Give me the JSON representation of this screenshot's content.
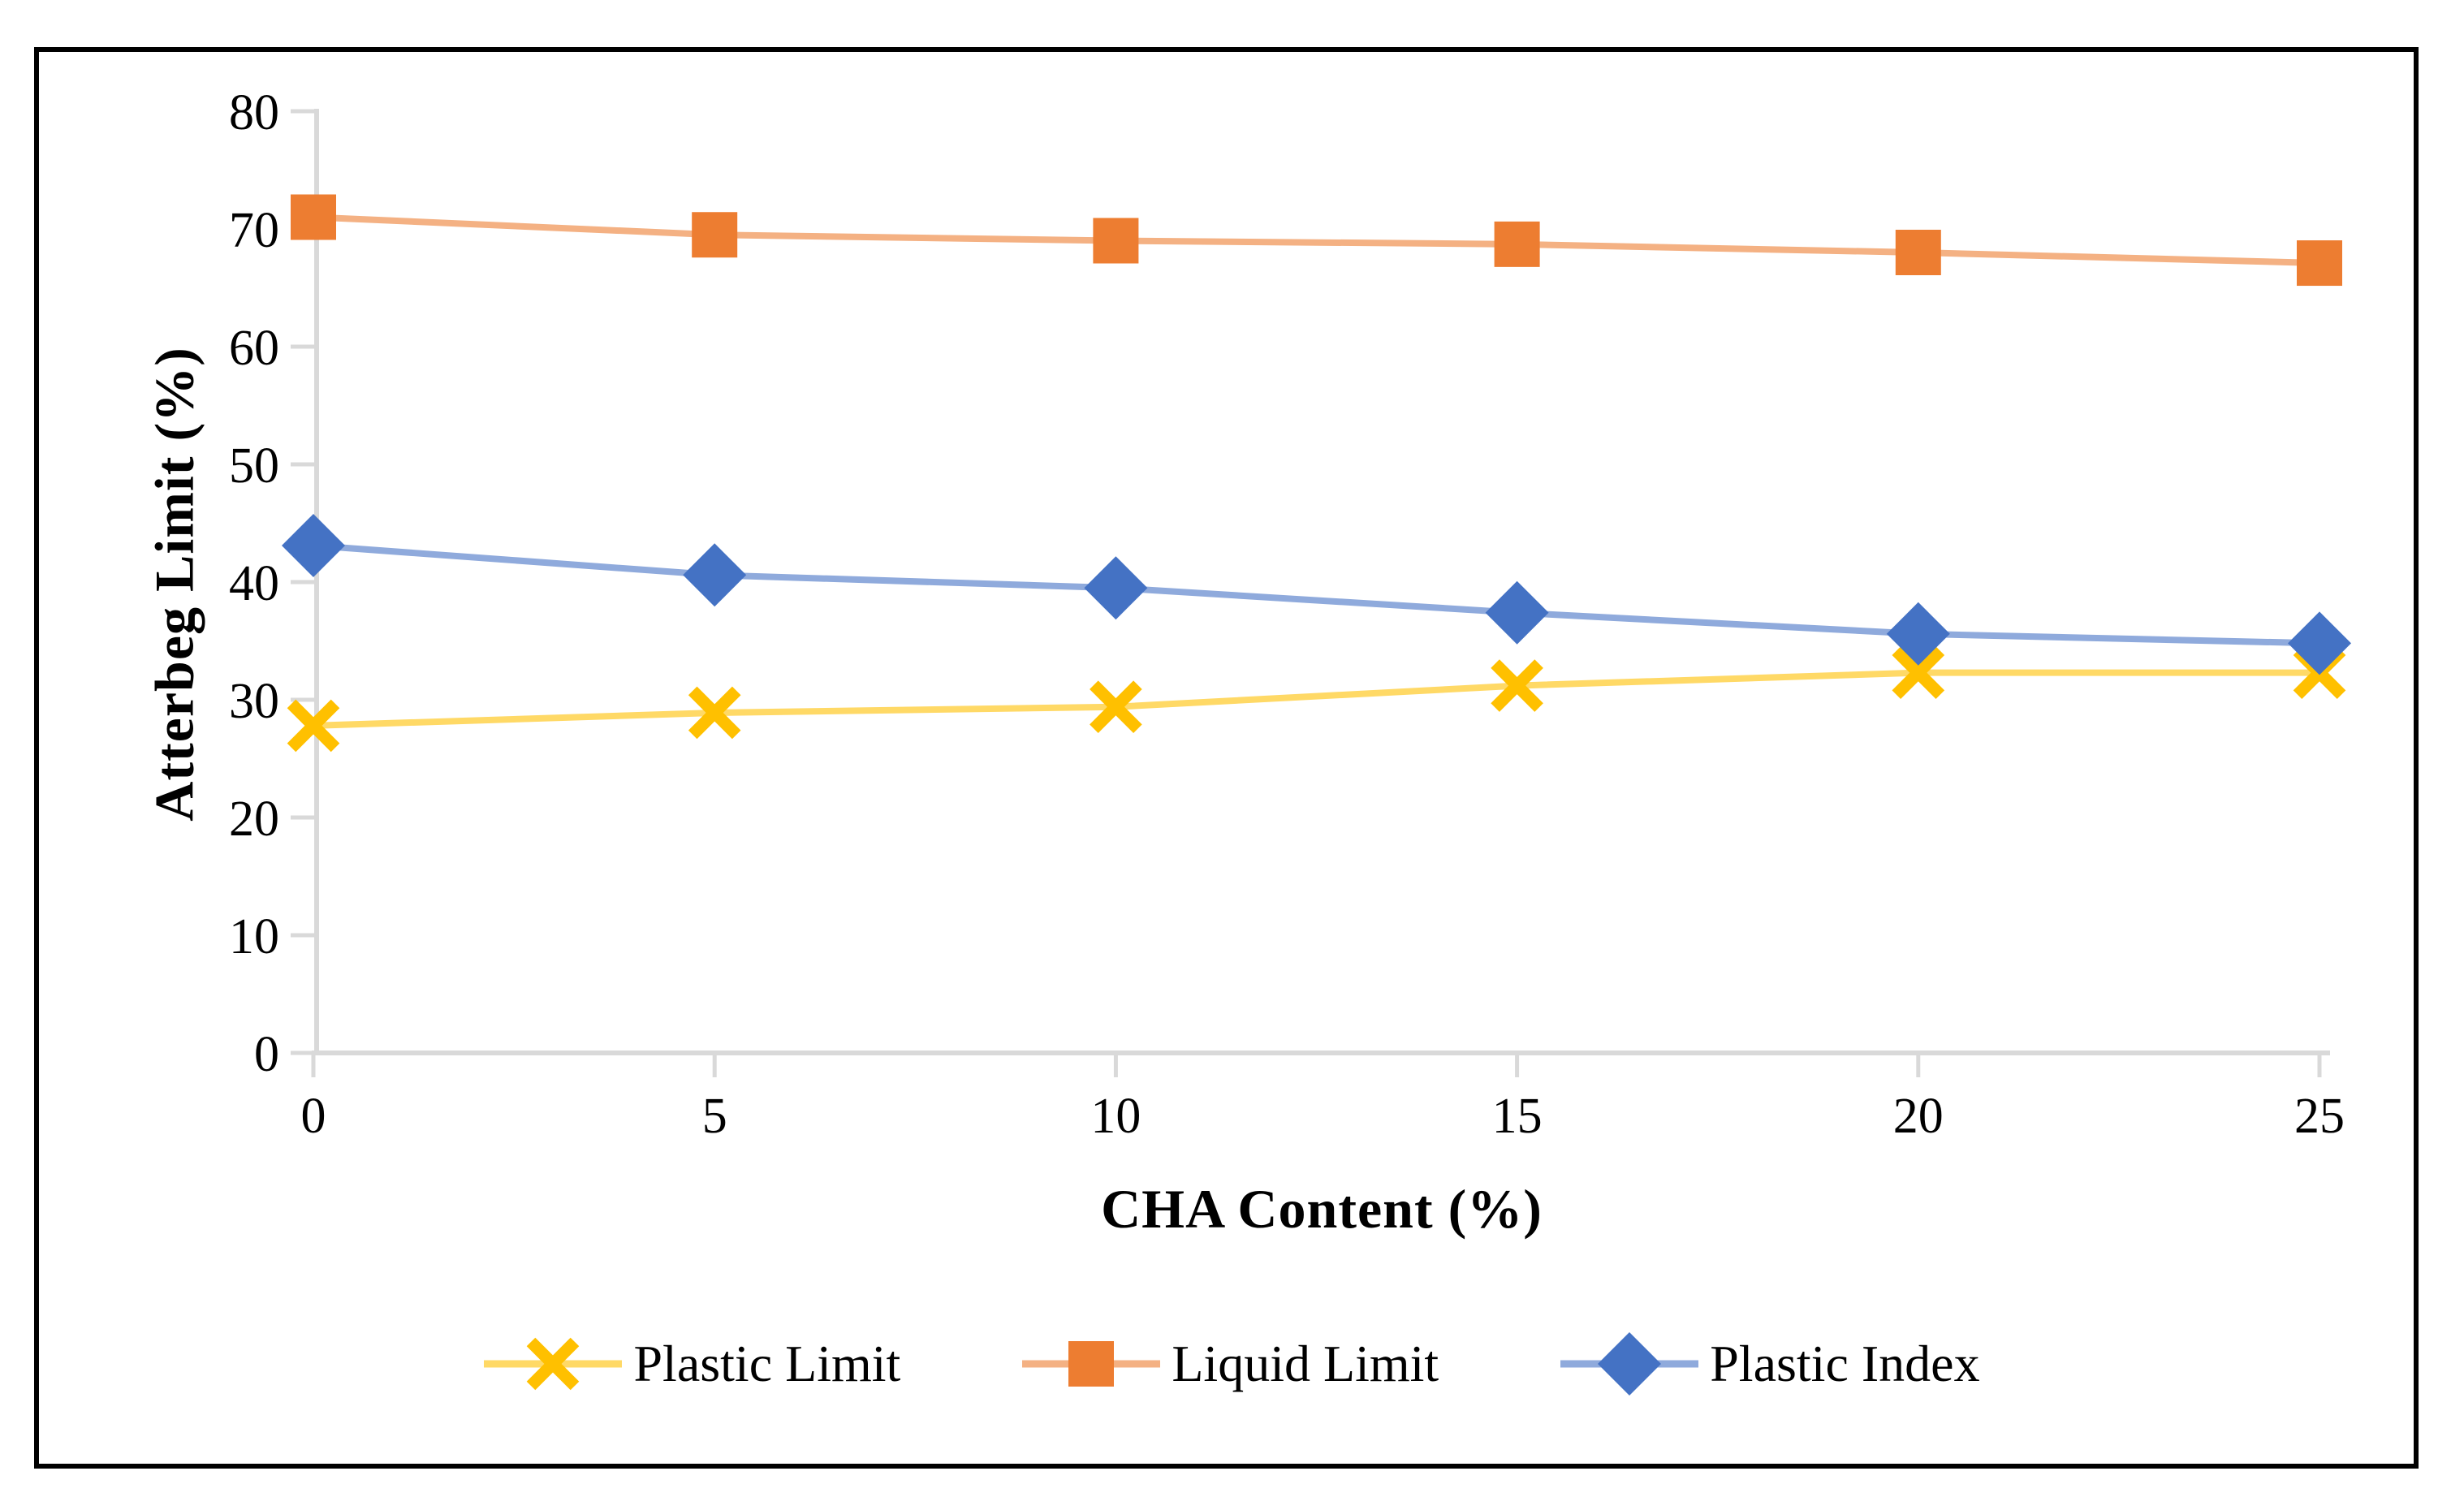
{
  "figure": {
    "background": "#ffffff",
    "border_color": "#000000"
  },
  "chart_data": {
    "type": "line",
    "title": "",
    "xlabel": "CHA Content (%)",
    "ylabel": "Atterbeg Limit (%)",
    "x": [
      0,
      5,
      10,
      15,
      20,
      25
    ],
    "x_ticks": [
      "0",
      "5",
      "10",
      "15",
      "20",
      "25"
    ],
    "y_ticks": [
      "0",
      "10",
      "20",
      "30",
      "40",
      "50",
      "60",
      "70",
      "80"
    ],
    "xlim": [
      0,
      25
    ],
    "ylim": [
      0,
      80
    ],
    "grid": false,
    "legend_position": "bottom",
    "axis_color": "#D9D9D9",
    "text_color": "#000000",
    "series": [
      {
        "name": "Plastic Limit",
        "marker": "x",
        "color": "#FFC000",
        "line_color": "#FFD966",
        "values": [
          27.8,
          28.9,
          29.4,
          31.2,
          32.3,
          32.3
        ]
      },
      {
        "name": "Liquid Limit",
        "marker": "square",
        "color": "#ED7D31",
        "line_color": "#F4B183",
        "values": [
          71,
          69.5,
          69,
          68.7,
          68,
          67.1
        ]
      },
      {
        "name": "Plastic Index",
        "marker": "diamond",
        "color": "#4472C4",
        "line_color": "#8FAADC",
        "values": [
          43.1,
          40.6,
          39.5,
          37.4,
          35.6,
          34.8
        ]
      }
    ]
  }
}
